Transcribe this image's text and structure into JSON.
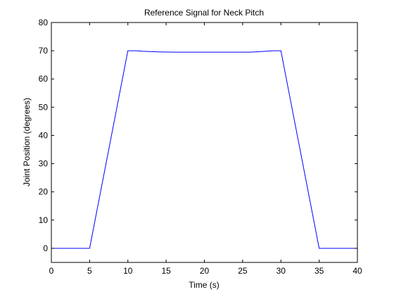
{
  "chart_data": {
    "type": "line",
    "title": "Reference Signal for Neck Pitch",
    "xlabel": "Time (s)",
    "ylabel": "Joint Position (degrees)",
    "xlim": [
      0,
      40
    ],
    "ylim": [
      -5,
      80
    ],
    "xticks": [
      0,
      5,
      10,
      15,
      20,
      25,
      30,
      35,
      40
    ],
    "yticks": [
      0,
      10,
      20,
      30,
      40,
      50,
      60,
      70,
      80
    ],
    "grid": false,
    "legend": "none",
    "series": [
      {
        "color": "#0000ff",
        "x": [
          0,
          5,
          10,
          11,
          12,
          14,
          16,
          18,
          20,
          22,
          24,
          26,
          28,
          29,
          30,
          35,
          40
        ],
        "y": [
          0,
          0,
          70,
          70,
          69.8,
          69.6,
          69.5,
          69.5,
          69.5,
          69.5,
          69.5,
          69.5,
          69.8,
          70,
          70,
          0,
          0
        ]
      }
    ]
  }
}
